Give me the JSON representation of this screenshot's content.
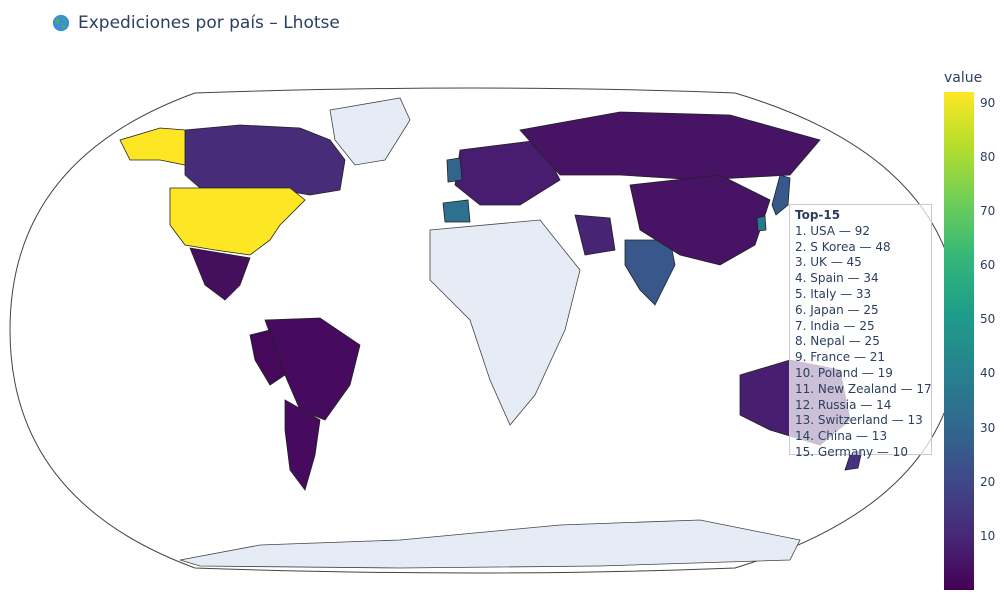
{
  "title": "Expediciones por país – Lhotse",
  "title_icon": "globe-icon",
  "colorbar": {
    "title": "value",
    "ticks": [
      "90",
      "80",
      "70",
      "60",
      "50",
      "40",
      "30",
      "20",
      "10"
    ],
    "tick_values": [
      90,
      80,
      70,
      60,
      50,
      40,
      30,
      20,
      10
    ],
    "min": 0,
    "max": 92,
    "colorscale": "viridis"
  },
  "annotation": {
    "heading": "Top-15",
    "rows": [
      "1. USA — 92",
      "2. S Korea — 48",
      "3. UK — 45",
      "4. Spain — 34",
      "5. Italy — 33",
      "6. Japan — 25",
      "7. India — 25",
      "8. Nepal — 25",
      "9. France — 21",
      "10. Poland — 19",
      "11. New Zealand — 17",
      "12. Russia — 14",
      "13. Switzerland — 13",
      "14. China — 13",
      "15. Germany — 10"
    ]
  },
  "colors": {
    "no_data": "#e5ecf6",
    "high": "#fde725",
    "low": "#440154"
  }
}
